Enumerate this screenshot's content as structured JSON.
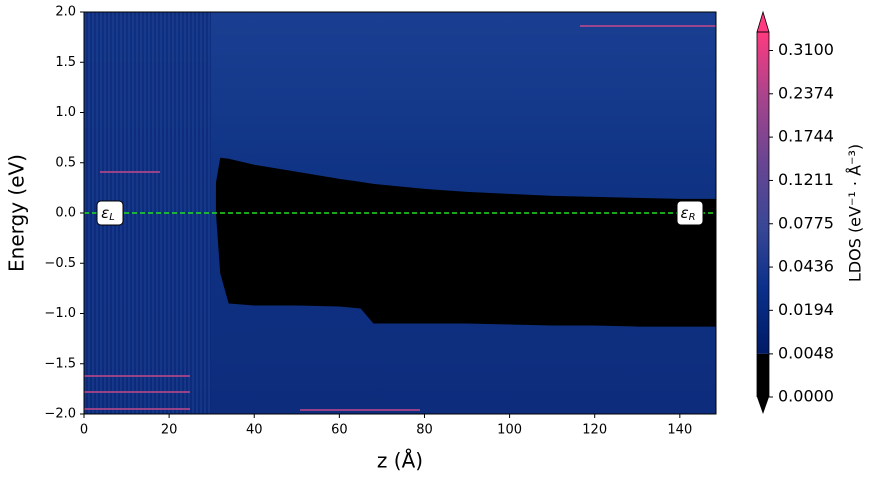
{
  "chart_data": {
    "type": "heatmap",
    "xlabel": "z (Å)",
    "ylabel": "Energy (eV)",
    "xlim": [
      0,
      148.5
    ],
    "ylim": [
      -2,
      2
    ],
    "xticks": [
      0,
      20,
      40,
      60,
      80,
      100,
      120,
      140
    ],
    "yticks": [
      {
        "value": -2.0,
        "label": "−2.0"
      },
      {
        "value": -1.5,
        "label": "−1.5"
      },
      {
        "value": -1.0,
        "label": "−1.0"
      },
      {
        "value": -0.5,
        "label": "−0.5"
      },
      {
        "value": 0.0,
        "label": "0.0"
      },
      0.5,
      {
        "value": 1.0,
        "label": "1.0"
      },
      1.5,
      {
        "value": 2.0,
        "label": "2.0"
      }
    ],
    "fermi_level": {
      "value": 0,
      "color": "#22dd22"
    },
    "left_label": {
      "symbol": "ε",
      "subscript": "L"
    },
    "right_label": {
      "symbol": "ε",
      "subscript": "R"
    },
    "zero_ldos_region": {
      "z": [
        31,
        32,
        34,
        40,
        50,
        60,
        65,
        68,
        80,
        90,
        100,
        110,
        120,
        130,
        140,
        148.5
      ],
      "upper": [
        0.3,
        0.55,
        0.54,
        0.48,
        0.41,
        0.34,
        0.31,
        0.29,
        0.24,
        0.21,
        0.19,
        0.17,
        0.16,
        0.15,
        0.14,
        0.14
      ],
      "lower": [
        0,
        -0.6,
        -0.9,
        -0.92,
        -0.92,
        -0.93,
        -0.95,
        -1.1,
        -1.1,
        -1.1,
        -1.11,
        -1.12,
        -1.12,
        -1.13,
        -1.13,
        -1.13
      ],
      "color": "#000000"
    },
    "colorbar": {
      "label": "LDOS (eV⁻¹ · Å⁻³)",
      "scale": "sqrt",
      "lim": [
        0,
        0.344
      ],
      "colors": [
        "#001a66",
        "#0a2f8a",
        "#3a4796",
        "#6a4592",
        "#a8448c",
        "#ff3a80"
      ],
      "ticks": [
        {
          "value": 0,
          "label": "0.0000"
        },
        {
          "value": 0.0048,
          "label": "0.0048"
        },
        {
          "value": 0.0194,
          "label": "0.0194"
        },
        {
          "value": 0.0436,
          "label": "0.0436"
        },
        {
          "value": 0.0775,
          "label": "0.0775"
        },
        {
          "value": 0.1211,
          "label": "0.1211"
        },
        {
          "value": 0.1744,
          "label": "0.1744"
        },
        {
          "value": 0.2374,
          "label": "0.2374"
        },
        {
          "value": 0.31,
          "label": "0.3100"
        }
      ]
    }
  }
}
